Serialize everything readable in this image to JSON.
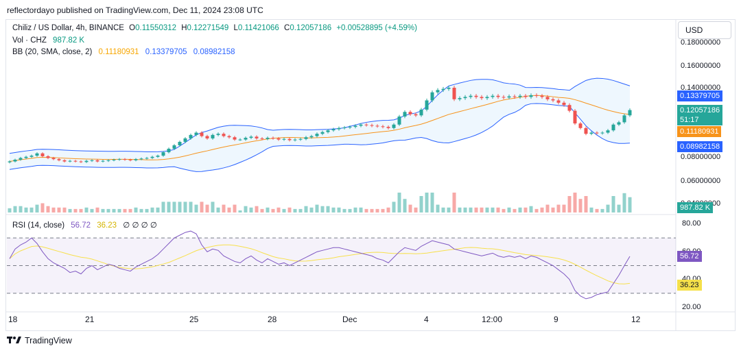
{
  "header": {
    "published_line": "reflectordayo published on TradingView.com, Dec 11, 2024 23:08 UTC"
  },
  "legend": {
    "symbol": "Chiliz / US Dollar, 4h, BINANCE",
    "o_label": "O",
    "o_value": "0.11550312",
    "h_label": "H",
    "h_value": "0.12271549",
    "l_label": "L",
    "l_value": "0.11421066",
    "c_label": "C",
    "c_value": "0.12057186",
    "change": "+0.00528895 (+4.59%)",
    "vol_label": "Vol · CHZ",
    "vol_value": "987.82 K",
    "bb_label": "BB (20, SMA, close, 2)",
    "bb_basis": "0.11180931",
    "bb_upper": "0.13379705",
    "bb_lower": "0.08982158",
    "rsi_label": "RSI (14, close)",
    "rsi_value": "56.72",
    "rsi_ma": "36.23",
    "rsi_extra": "∅ ∅ ∅ ∅"
  },
  "currency_button": {
    "label": "USD"
  },
  "price_axis": [
    "0.18000000",
    "0.16000000",
    "0.14000000",
    "0.08000000",
    "0.06000000",
    "0.04000000"
  ],
  "price_tags": {
    "upper": "0.13379705",
    "close": "0.12057186",
    "countdown": "51:17",
    "basis": "0.11180931",
    "lower": "0.08982158",
    "volume": "987.82 K"
  },
  "rsi_axis": [
    "80.00",
    "60.00",
    "40.00",
    "20.00"
  ],
  "rsi_tags": {
    "rsi": "56.72",
    "ma": "36.23"
  },
  "time_axis": [
    "18",
    "21",
    "25",
    "28",
    "Dec",
    "4",
    "12:00",
    "9",
    "12"
  ],
  "footer": {
    "brand": "TradingView"
  },
  "colors": {
    "up": "#26a69a",
    "down": "#ef5350",
    "bb_band": "#2962ff",
    "bb_basis": "#f7931a",
    "rsi_line": "#7e57c2",
    "rsi_ma": "#f7e04b"
  },
  "chart_data": {
    "type": "candlestick",
    "ylim": [
      0.04,
      0.18
    ],
    "closes": [
      0.076,
      0.0775,
      0.079,
      0.08,
      0.081,
      0.083,
      0.0805,
      0.079,
      0.078,
      0.077,
      0.076,
      0.0765,
      0.076,
      0.0755,
      0.0765,
      0.077,
      0.076,
      0.0765,
      0.077,
      0.0775,
      0.078,
      0.0775,
      0.077,
      0.078,
      0.0785,
      0.079,
      0.08,
      0.081,
      0.084,
      0.087,
      0.09,
      0.093,
      0.096,
      0.099,
      0.101,
      0.098,
      0.096,
      0.099,
      0.1,
      0.098,
      0.097,
      0.095,
      0.095,
      0.0965,
      0.0975,
      0.096,
      0.0955,
      0.0965,
      0.096,
      0.095,
      0.0955,
      0.0945,
      0.095,
      0.0955,
      0.097,
      0.098,
      0.1,
      0.1015,
      0.103,
      0.104,
      0.105,
      0.1055,
      0.106,
      0.107,
      0.108,
      0.1075,
      0.107,
      0.1065,
      0.106,
      0.105,
      0.108,
      0.115,
      0.119,
      0.117,
      0.116,
      0.121,
      0.129,
      0.136,
      0.138,
      0.139,
      0.14,
      0.13,
      0.131,
      0.132,
      0.133,
      0.132,
      0.131,
      0.132,
      0.133,
      0.132,
      0.1315,
      0.1325,
      0.132,
      0.133,
      0.132,
      0.1335,
      0.133,
      0.132,
      0.13,
      0.129,
      0.127,
      0.125,
      0.12,
      0.109,
      0.105,
      0.1,
      0.101,
      0.1005,
      0.101,
      0.103,
      0.108,
      0.11,
      0.116,
      0.1206
    ],
    "rsi": [
      55,
      62,
      65,
      67,
      70,
      66,
      60,
      55,
      52,
      50,
      48,
      45,
      46,
      44,
      48,
      50,
      47,
      49,
      51,
      50,
      48,
      47,
      46,
      49,
      51,
      53,
      55,
      58,
      62,
      66,
      70,
      72,
      74,
      75,
      73,
      65,
      60,
      62,
      61,
      57,
      55,
      53,
      52,
      55,
      57,
      54,
      52,
      55,
      53,
      51,
      52,
      50,
      52,
      54,
      56,
      58,
      60,
      61,
      62,
      63,
      63,
      62,
      61,
      60,
      59,
      58,
      57,
      55,
      54,
      52,
      56,
      60,
      63,
      62,
      61,
      64,
      66,
      68,
      67,
      66,
      65,
      62,
      61,
      60,
      59,
      58,
      57,
      58,
      59,
      57,
      56,
      57,
      56,
      57,
      55,
      57,
      56,
      54,
      52,
      50,
      47,
      44,
      40,
      32,
      28,
      26,
      27,
      29,
      30,
      31,
      37,
      43,
      50,
      56.72
    ]
  }
}
